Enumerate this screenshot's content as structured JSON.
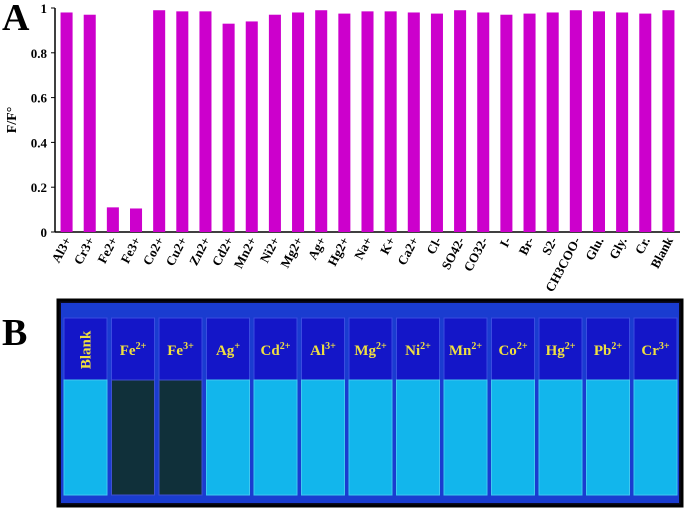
{
  "panels": {
    "a": "A",
    "b": "B"
  },
  "chart_data": {
    "type": "bar",
    "ylabel": "F/F°",
    "categories": [
      "Al3+",
      "Cr3+",
      "Fe2+",
      "Fe3+",
      "Co2+",
      "Cu2+",
      "Zn2+",
      "Cd2+",
      "Mn2+",
      "Ni2+",
      "Mg2+",
      "Ag+",
      "Hg2+",
      "Na+",
      "K+",
      "Ca2+",
      "Cl-",
      "SO42-",
      "CO32-",
      "I-",
      "Br-",
      "S2-",
      "CH3COO-",
      "Glu.",
      "Gly.",
      "Cr.",
      "Blank"
    ],
    "values": [
      0.98,
      0.97,
      0.11,
      0.105,
      0.99,
      0.985,
      0.985,
      0.93,
      0.94,
      0.97,
      0.98,
      0.99,
      0.975,
      0.985,
      0.985,
      0.98,
      0.975,
      0.99,
      0.98,
      0.97,
      0.975,
      0.98,
      0.99,
      0.985,
      0.98,
      0.975,
      0.99
    ],
    "color": "#cc00cc",
    "ylim": [
      0,
      1
    ],
    "yticks": [
      0,
      0.2,
      0.4,
      0.6,
      0.8,
      1
    ]
  },
  "photo": {
    "cuvettes": [
      {
        "ion": "Blank"
      },
      {
        "ion": "Fe",
        "charge": "2+"
      },
      {
        "ion": "Fe",
        "charge": "3+"
      },
      {
        "ion": "Ag",
        "charge": "+"
      },
      {
        "ion": "Cd",
        "charge": "2+"
      },
      {
        "ion": "Al",
        "charge": "3+"
      },
      {
        "ion": "Mg",
        "charge": "2+"
      },
      {
        "ion": "Ni",
        "charge": "2+"
      },
      {
        "ion": "Mn",
        "charge": "2+"
      },
      {
        "ion": "Co",
        "charge": "2+"
      },
      {
        "ion": "Hg",
        "charge": "2+"
      },
      {
        "ion": "Pb",
        "charge": "2+"
      },
      {
        "ion": "Cr",
        "charge": "3+"
      }
    ]
  }
}
